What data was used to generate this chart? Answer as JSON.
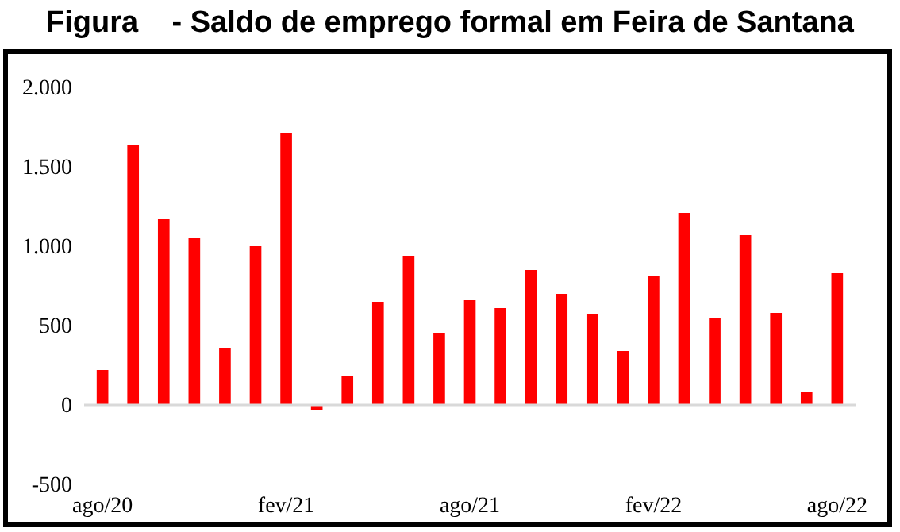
{
  "chart_data": {
    "type": "bar",
    "title": "Figura    - Saldo de emprego formal em Feira de Santana",
    "categories": [
      "ago/20",
      null,
      null,
      null,
      null,
      null,
      "fev/21",
      null,
      null,
      null,
      null,
      null,
      "ago/21",
      null,
      null,
      null,
      null,
      null,
      "fev/22",
      null,
      null,
      null,
      null,
      null,
      "ago/22"
    ],
    "values": [
      220,
      1640,
      1170,
      1050,
      360,
      1000,
      1710,
      -30,
      180,
      650,
      940,
      450,
      660,
      610,
      850,
      700,
      570,
      340,
      810,
      1210,
      550,
      1070,
      580,
      80,
      830
    ],
    "color": "#ff0000",
    "ylim": [
      -500,
      2000
    ],
    "yticks": [
      {
        "value": -500,
        "label": "-500"
      },
      0,
      500,
      {
        "value": 1000,
        "label": "1.000"
      },
      {
        "value": 1500,
        "label": "1.500"
      },
      {
        "value": 2000,
        "label": "2.000"
      }
    ],
    "ref_lines": [
      {
        "axis": "y",
        "value": 0,
        "color": "#d9d9d9"
      }
    ],
    "grid": false
  }
}
